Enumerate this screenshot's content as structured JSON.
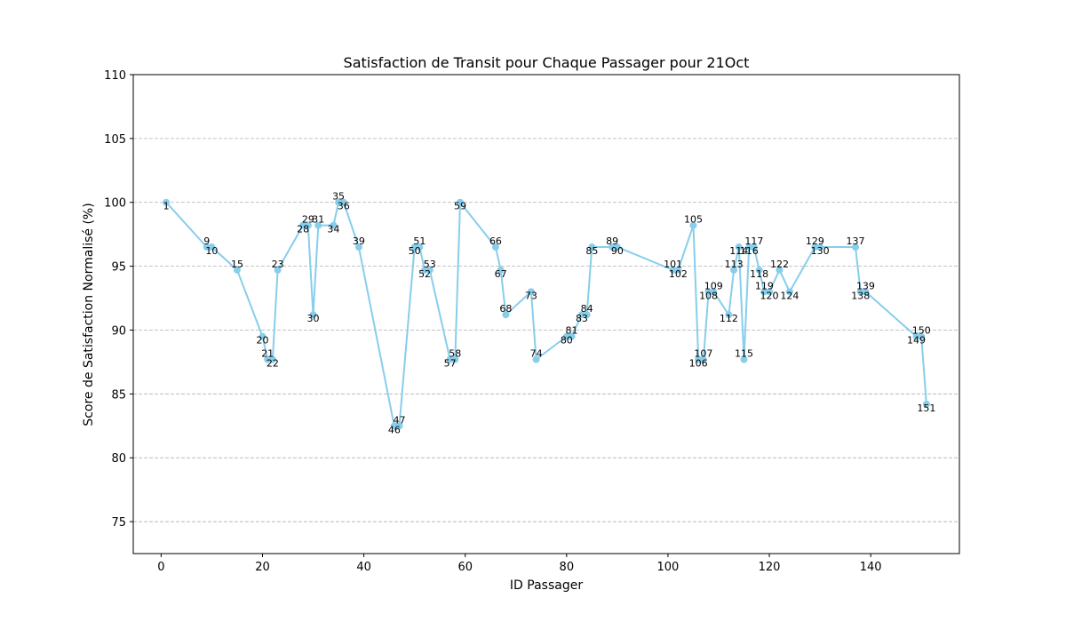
{
  "chart_data": {
    "type": "line",
    "title": "Satisfaction de Transit pour Chaque Passager pour 21Oct",
    "xlabel": "ID Passager",
    "ylabel": "Score de Satisfaction Normalisé (%)",
    "xlim": [
      -5.5,
      157.5
    ],
    "ylim": [
      72.5,
      110
    ],
    "xticks": [
      0,
      20,
      40,
      60,
      80,
      100,
      120,
      140
    ],
    "yticks": [
      75,
      80,
      85,
      90,
      95,
      100,
      105,
      110
    ],
    "grid": "horizontal dashed",
    "colors": {
      "line": "#87ceeb",
      "grid": "#b0b0b0"
    },
    "series": [
      {
        "points": [
          [
            1,
            100.0
          ],
          [
            9,
            96.5
          ],
          [
            10,
            96.5
          ],
          [
            15,
            94.7
          ],
          [
            20,
            89.5
          ],
          [
            21,
            87.7
          ],
          [
            22,
            87.7
          ],
          [
            23,
            94.7
          ],
          [
            28,
            98.2
          ],
          [
            29,
            98.2
          ],
          [
            30,
            91.2
          ],
          [
            31,
            98.2
          ],
          [
            34,
            98.2
          ],
          [
            35,
            100.0
          ],
          [
            36,
            100.0
          ],
          [
            39,
            96.5
          ],
          [
            46,
            82.5
          ],
          [
            47,
            82.5
          ],
          [
            50,
            96.5
          ],
          [
            51,
            96.5
          ],
          [
            52,
            94.7
          ],
          [
            53,
            94.7
          ],
          [
            57,
            87.7
          ],
          [
            58,
            87.7
          ],
          [
            59,
            100.0
          ],
          [
            66,
            96.5
          ],
          [
            67,
            94.7
          ],
          [
            68,
            91.2
          ],
          [
            73,
            93.0
          ],
          [
            74,
            87.7
          ],
          [
            80,
            89.5
          ],
          [
            81,
            89.5
          ],
          [
            83,
            91.2
          ],
          [
            84,
            91.2
          ],
          [
            85,
            96.5
          ],
          [
            89,
            96.5
          ],
          [
            90,
            96.5
          ],
          [
            101,
            94.7
          ],
          [
            102,
            94.7
          ],
          [
            105,
            98.2
          ],
          [
            106,
            87.7
          ],
          [
            107,
            87.7
          ],
          [
            108,
            93.0
          ],
          [
            109,
            93.0
          ],
          [
            112,
            91.2
          ],
          [
            113,
            94.7
          ],
          [
            114,
            96.5
          ],
          [
            115,
            87.7
          ],
          [
            116,
            96.5
          ],
          [
            117,
            96.5
          ],
          [
            118,
            94.7
          ],
          [
            119,
            93.0
          ],
          [
            120,
            93.0
          ],
          [
            122,
            94.7
          ],
          [
            124,
            93.0
          ],
          [
            129,
            96.5
          ],
          [
            130,
            96.5
          ],
          [
            137,
            96.5
          ],
          [
            138,
            93.0
          ],
          [
            139,
            93.0
          ],
          [
            149,
            89.5
          ],
          [
            150,
            89.5
          ],
          [
            151,
            84.2
          ]
        ]
      }
    ]
  }
}
